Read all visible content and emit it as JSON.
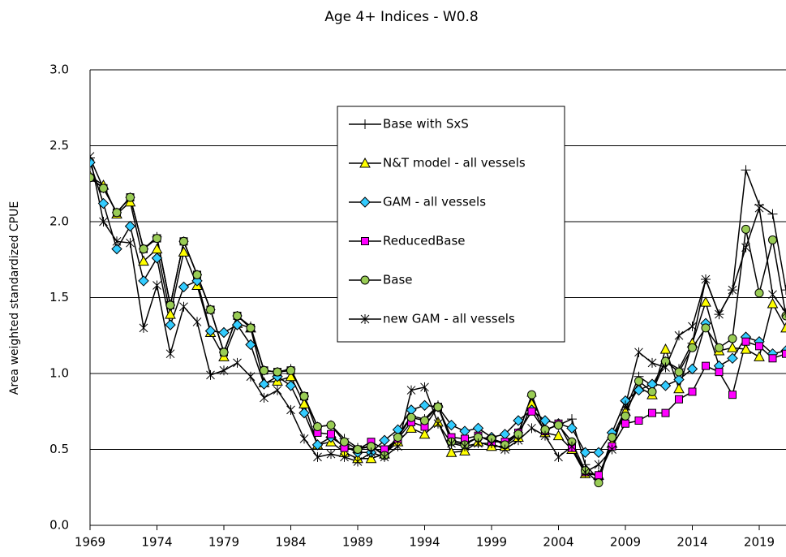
{
  "chart_data": {
    "type": "line",
    "title": "Age 4+ Indices - W0.8",
    "y_label": "Area weighted standardized CPUE",
    "x": [
      1969,
      1970,
      1971,
      1972,
      1973,
      1974,
      1975,
      1976,
      1977,
      1978,
      1979,
      1980,
      1981,
      1982,
      1983,
      1984,
      1985,
      1986,
      1987,
      1988,
      1989,
      1990,
      1991,
      1992,
      1993,
      1994,
      1995,
      1996,
      1997,
      1998,
      1999,
      2000,
      2001,
      2002,
      2003,
      2004,
      2005,
      2006,
      2007,
      2008,
      2009,
      2010,
      2011,
      2012,
      2013,
      2014,
      2015,
      2016,
      2017,
      2018,
      2019,
      2020,
      2021
    ],
    "xlim": [
      1969,
      2021
    ],
    "xticks": [
      1969,
      1974,
      1979,
      1984,
      1989,
      1994,
      1999,
      2004,
      2009,
      2014,
      2019
    ],
    "ylim": [
      0,
      3
    ],
    "yticks": [
      {
        "value": 0,
        "label": "0.0"
      },
      {
        "value": 0.5,
        "label": "0.5"
      },
      {
        "value": 1,
        "label": "1.0"
      },
      {
        "value": 1.5,
        "label": "1.5"
      },
      {
        "value": 2,
        "label": "2.0"
      },
      {
        "value": 2.5,
        "label": "2.5"
      },
      {
        "value": 3,
        "label": "3.0"
      }
    ],
    "grid": true,
    "line_color": "#000000",
    "series": [
      {
        "name": "Base with SxS",
        "marker": "plus",
        "color": "#000000",
        "values": [
          2.42,
          2.22,
          2.06,
          2.16,
          1.82,
          1.9,
          1.45,
          1.87,
          1.65,
          1.42,
          1.14,
          1.38,
          1.31,
          1.02,
          1.01,
          1.03,
          0.85,
          0.65,
          0.66,
          0.57,
          0.51,
          0.52,
          0.47,
          0.59,
          0.72,
          0.7,
          0.79,
          0.56,
          0.54,
          0.58,
          0.57,
          0.54,
          0.61,
          0.85,
          0.63,
          0.66,
          0.7,
          0.4,
          0.3,
          0.58,
          0.76,
          0.98,
          0.92,
          1.08,
          1.03,
          1.2,
          1.62,
          1.39,
          1.55,
          2.34,
          2.11,
          2.05,
          1.55
        ]
      },
      {
        "name": "N&T model - all vessels",
        "marker": "triangle",
        "color": "#ffff00",
        "values": [
          2.3,
          2.24,
          2.05,
          2.13,
          1.74,
          1.82,
          1.39,
          1.8,
          1.58,
          1.27,
          1.11,
          1.33,
          1.3,
          0.94,
          0.95,
          0.98,
          0.8,
          0.53,
          0.55,
          0.48,
          0.44,
          0.44,
          0.47,
          0.55,
          0.64,
          0.6,
          0.68,
          0.48,
          0.49,
          0.55,
          0.52,
          0.52,
          0.58,
          0.8,
          0.61,
          0.59,
          0.5,
          0.34,
          0.33,
          0.54,
          0.75,
          0.91,
          0.86,
          1.16,
          0.9,
          1.2,
          1.47,
          1.15,
          1.17,
          1.16,
          1.11,
          1.46,
          1.3
        ]
      },
      {
        "name": "GAM - all vessels",
        "marker": "diamond",
        "color": "#33ccff",
        "values": [
          2.39,
          2.12,
          1.82,
          1.97,
          1.61,
          1.76,
          1.32,
          1.57,
          1.61,
          1.28,
          1.27,
          1.32,
          1.19,
          0.93,
          0.98,
          0.92,
          0.74,
          0.53,
          0.58,
          0.52,
          0.48,
          0.48,
          0.56,
          0.63,
          0.76,
          0.79,
          0.78,
          0.66,
          0.62,
          0.64,
          0.58,
          0.6,
          0.69,
          0.76,
          0.69,
          0.67,
          0.64,
          0.48,
          0.48,
          0.61,
          0.82,
          0.89,
          0.93,
          0.92,
          0.96,
          1.03,
          1.33,
          1.05,
          1.1,
          1.24,
          1.21,
          1.13,
          1.15
        ]
      },
      {
        "name": "ReducedBase",
        "marker": "square",
        "color": "#ff00ff",
        "values": [
          2.29,
          2.22,
          2.06,
          2.16,
          1.82,
          1.89,
          1.45,
          1.87,
          1.65,
          1.42,
          1.14,
          1.38,
          1.3,
          1.02,
          1.01,
          1.02,
          0.85,
          0.61,
          0.6,
          0.51,
          0.5,
          0.55,
          0.5,
          0.57,
          0.68,
          0.65,
          0.78,
          0.58,
          0.57,
          0.59,
          0.55,
          0.55,
          0.61,
          0.75,
          0.62,
          0.67,
          0.51,
          0.35,
          0.33,
          0.52,
          0.67,
          0.69,
          0.74,
          0.74,
          0.83,
          0.88,
          1.05,
          1.01,
          0.86,
          1.21,
          1.18,
          1.1,
          1.13
        ]
      },
      {
        "name": "Base",
        "marker": "circle",
        "color": "#99cc55",
        "values": [
          2.29,
          2.22,
          2.06,
          2.16,
          1.82,
          1.89,
          1.45,
          1.87,
          1.65,
          1.42,
          1.14,
          1.38,
          1.3,
          1.02,
          1.01,
          1.02,
          0.85,
          0.65,
          0.66,
          0.55,
          0.5,
          0.52,
          0.46,
          0.58,
          0.71,
          0.69,
          0.78,
          0.55,
          0.53,
          0.58,
          0.57,
          0.53,
          0.6,
          0.86,
          0.63,
          0.66,
          0.55,
          0.36,
          0.28,
          0.58,
          0.72,
          0.95,
          0.88,
          1.08,
          1.01,
          1.17,
          1.3,
          1.17,
          1.23,
          1.95,
          1.53,
          1.88,
          1.38
        ]
      },
      {
        "name": "new GAM - all vessels",
        "marker": "asterisk",
        "color": "#000000",
        "values": [
          2.43,
          2.0,
          1.87,
          1.86,
          1.3,
          1.58,
          1.13,
          1.44,
          1.34,
          0.99,
          1.02,
          1.07,
          0.98,
          0.84,
          0.89,
          0.76,
          0.57,
          0.45,
          0.47,
          0.45,
          0.42,
          0.48,
          0.45,
          0.52,
          0.89,
          0.91,
          0.67,
          0.54,
          0.52,
          0.54,
          0.54,
          0.5,
          0.56,
          0.64,
          0.59,
          0.45,
          0.52,
          0.35,
          0.4,
          0.5,
          0.79,
          1.14,
          1.07,
          1.04,
          1.25,
          1.31,
          1.62,
          1.39,
          1.55,
          1.83,
          2.09,
          1.52,
          1.4
        ]
      }
    ]
  }
}
